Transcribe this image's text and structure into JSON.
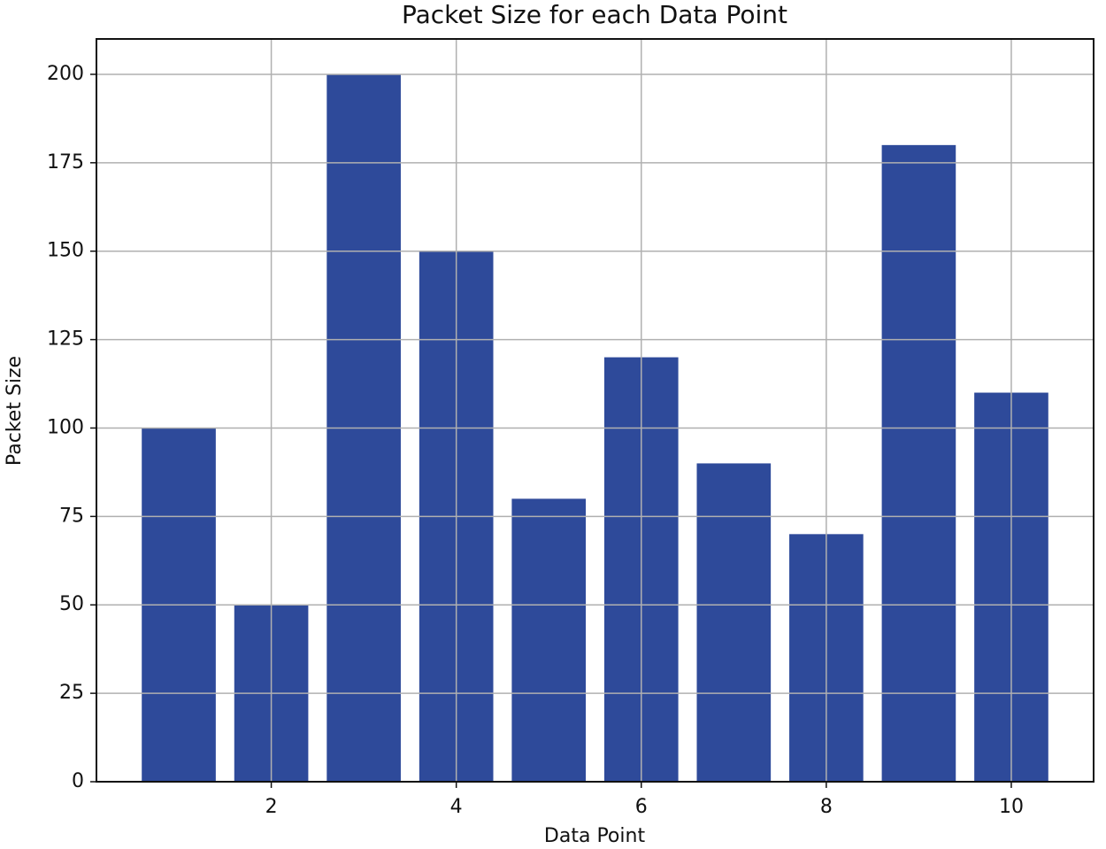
{
  "chart_data": {
    "type": "bar",
    "title": "Packet Size for each Data Point",
    "x_label": "Data Point",
    "y_label": "Packet Size",
    "x": [
      1,
      2,
      3,
      4,
      5,
      6,
      7,
      8,
      9,
      10
    ],
    "values": [
      100,
      50,
      200,
      150,
      80,
      120,
      90,
      70,
      180,
      110
    ],
    "color": "#2e4a9a",
    "xlim": [
      0.11,
      10.89
    ],
    "xticks": [
      2,
      4,
      6,
      8,
      10
    ],
    "ylim": [
      0,
      210
    ],
    "yticks": [
      0,
      25,
      50,
      75,
      100,
      125,
      150,
      175,
      200
    ],
    "grid": true
  }
}
